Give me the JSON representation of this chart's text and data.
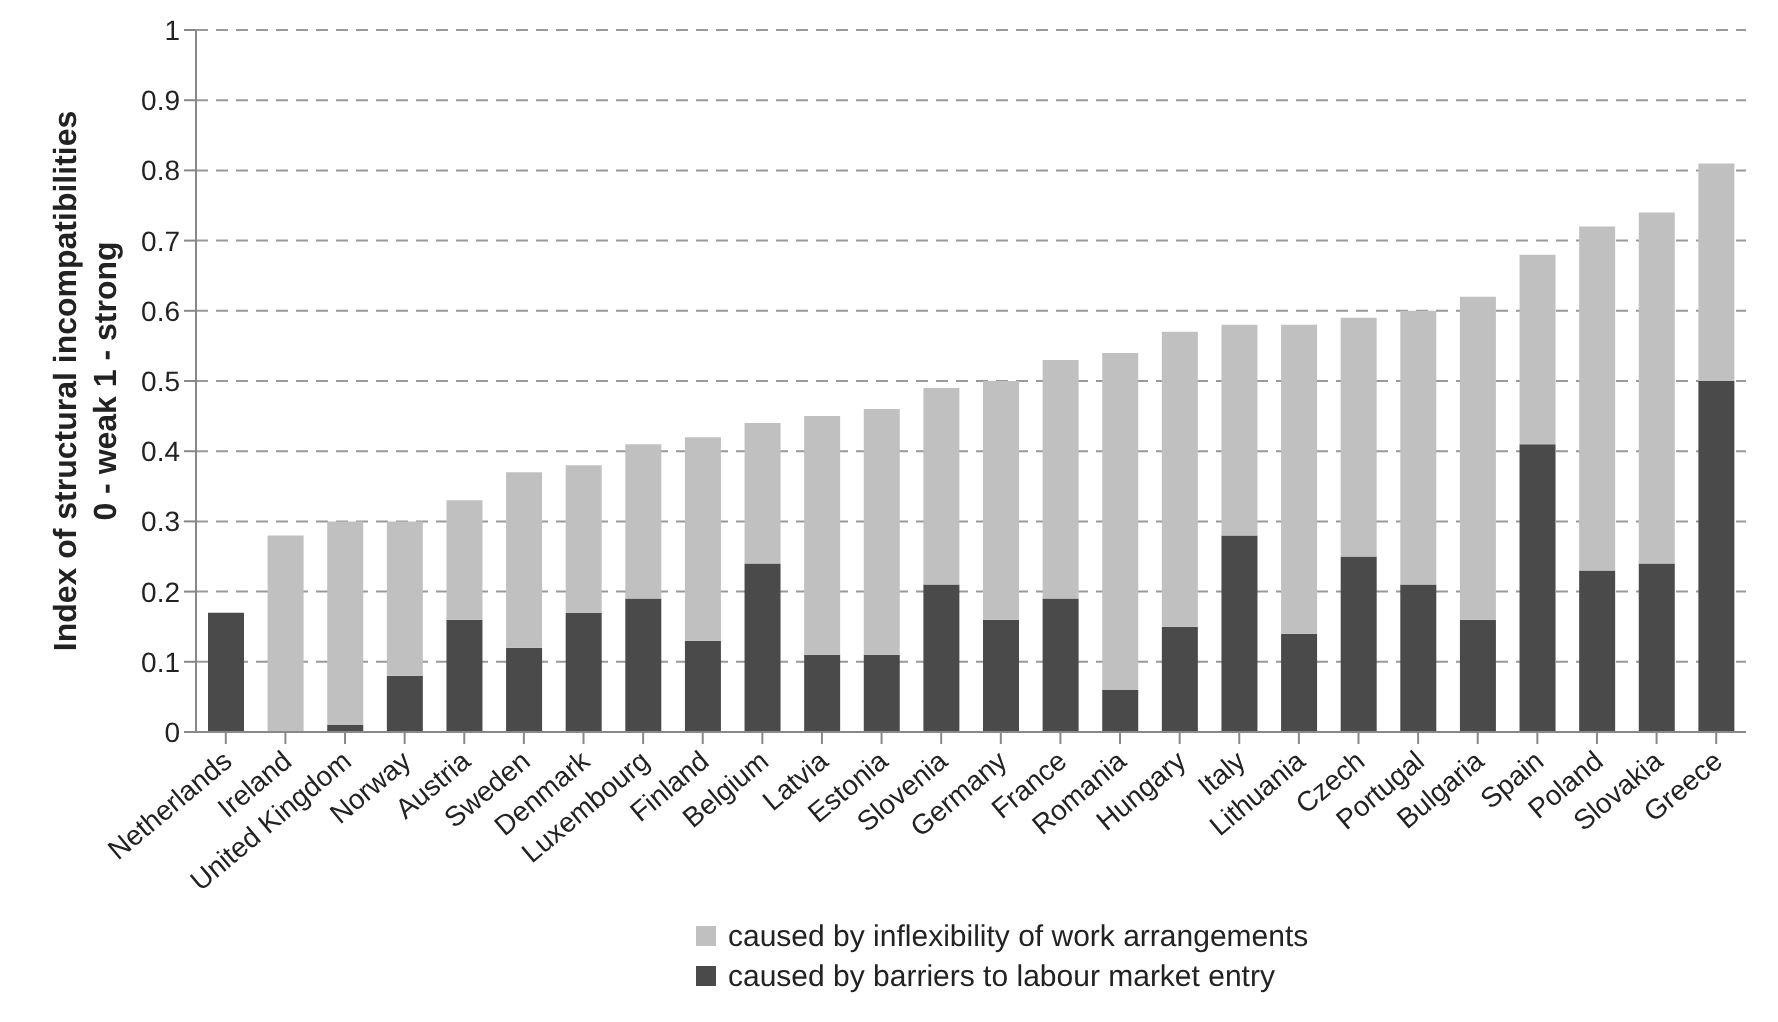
{
  "chart_data": {
    "type": "bar",
    "stacked": true,
    "ylabel": "Index of structural incompatibilities\n0 - weak 1 - strong",
    "categories": [
      "Netherlands",
      "Ireland",
      "United Kingdom",
      "Norway",
      "Austria",
      "Sweden",
      "Denmark",
      "Luxembourg",
      "Finland",
      "Belgium",
      "Latvia",
      "Estonia",
      "Slovenia",
      "Germany",
      "France",
      "Romania",
      "Hungary",
      "Italy",
      "Lithuania",
      "Czech",
      "Portugal",
      "Bulgaria",
      "Spain",
      "Poland",
      "Slovakia",
      "Greece"
    ],
    "series": [
      {
        "name": "caused by barriers to labour market entry",
        "color": "#4a4a4a",
        "values": [
          0.17,
          0,
          0.01,
          0.08,
          0.16,
          0.12,
          0.17,
          0.19,
          0.13,
          0.24,
          0.11,
          0.11,
          0.21,
          0.16,
          0.19,
          0.06,
          0.15,
          0.28,
          0.14,
          0.25,
          0.21,
          0.16,
          0.41,
          0.23,
          0.24,
          0.5
        ]
      },
      {
        "name": "caused by inflexibility of work arrangements",
        "color": "#c0c0c0",
        "values": [
          0,
          0.28,
          0.29,
          0.22,
          0.17,
          0.25,
          0.21,
          0.22,
          0.29,
          0.2,
          0.34,
          0.35,
          0.28,
          0.34,
          0.34,
          0.48,
          0.42,
          0.3,
          0.44,
          0.34,
          0.39,
          0.46,
          0.27,
          0.49,
          0.5,
          0.31
        ]
      }
    ],
    "ylim": [
      0,
      1
    ],
    "yticks": [
      0,
      0.1,
      0.2,
      0.3,
      0.4,
      0.5,
      0.6,
      0.7,
      0.8,
      0.9,
      1
    ],
    "grid": "y",
    "legend": "bottom"
  }
}
